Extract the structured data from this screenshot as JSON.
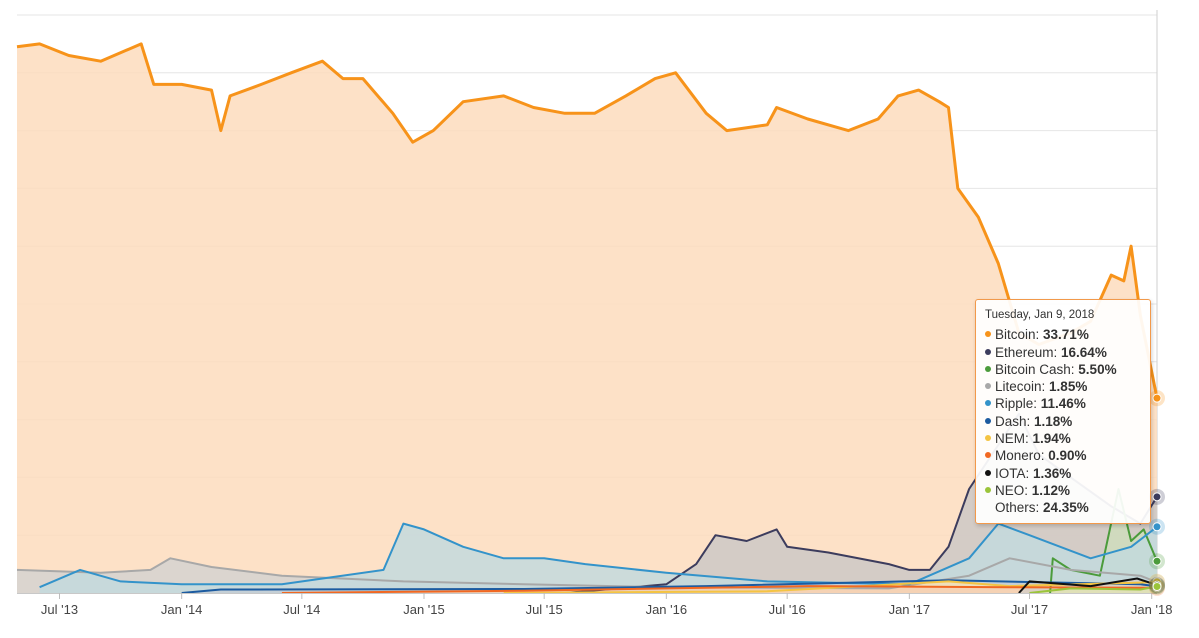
{
  "chart_data": {
    "type": "area",
    "title": "",
    "xlabel": "",
    "ylabel": "",
    "ylim": [
      0,
      100
    ],
    "x_ticks": [
      "Jul '13",
      "Jan '14",
      "Jul '14",
      "Jan '15",
      "Jul '15",
      "Jan '16",
      "Jul '16",
      "Jan '17",
      "Jul '17",
      "Jan '18"
    ],
    "grid": true,
    "series": [
      {
        "name": "Bitcoin",
        "color": "#f7931a",
        "fill": "#fddcbd",
        "points": [
          [
            "2013-04-28",
            94.5
          ],
          [
            "2013-06-01",
            95
          ],
          [
            "2013-07-15",
            93
          ],
          [
            "2013-09-01",
            92
          ],
          [
            "2013-11-01",
            95
          ],
          [
            "2013-11-20",
            88
          ],
          [
            "2014-01-01",
            88
          ],
          [
            "2014-02-15",
            87
          ],
          [
            "2014-03-01",
            80
          ],
          [
            "2014-03-15",
            86
          ],
          [
            "2014-05-01",
            88
          ],
          [
            "2014-06-15",
            90
          ],
          [
            "2014-08-01",
            92
          ],
          [
            "2014-09-01",
            89
          ],
          [
            "2014-10-01",
            89
          ],
          [
            "2014-11-15",
            83
          ],
          [
            "2014-12-15",
            78
          ],
          [
            "2015-01-15",
            80
          ],
          [
            "2015-03-01",
            85
          ],
          [
            "2015-05-01",
            86
          ],
          [
            "2015-06-15",
            84
          ],
          [
            "2015-08-01",
            83
          ],
          [
            "2015-09-15",
            83
          ],
          [
            "2015-11-01",
            86
          ],
          [
            "2015-12-15",
            89
          ],
          [
            "2016-01-15",
            90
          ],
          [
            "2016-03-01",
            83
          ],
          [
            "2016-04-01",
            80
          ],
          [
            "2016-06-01",
            81
          ],
          [
            "2016-06-15",
            84
          ],
          [
            "2016-08-01",
            82
          ],
          [
            "2016-10-01",
            80
          ],
          [
            "2016-11-15",
            82
          ],
          [
            "2016-12-15",
            86
          ],
          [
            "2017-01-15",
            87
          ],
          [
            "2017-02-15",
            85
          ],
          [
            "2017-03-01",
            84
          ],
          [
            "2017-03-15",
            70
          ],
          [
            "2017-04-15",
            65
          ],
          [
            "2017-05-15",
            57
          ],
          [
            "2017-06-15",
            45
          ],
          [
            "2017-07-15",
            43
          ],
          [
            "2017-09-01",
            45
          ],
          [
            "2017-10-01",
            47
          ],
          [
            "2017-11-01",
            55
          ],
          [
            "2017-11-20",
            54
          ],
          [
            "2017-12-01",
            60
          ],
          [
            "2017-12-15",
            48
          ],
          [
            "2018-01-09",
            33.71
          ]
        ]
      },
      {
        "name": "Ethereum",
        "color": "#3c3c5d",
        "fill": "#cdc8c6",
        "points": [
          [
            "2015-08-01",
            0
          ],
          [
            "2016-01-01",
            1.5
          ],
          [
            "2016-02-15",
            5
          ],
          [
            "2016-03-15",
            10
          ],
          [
            "2016-05-01",
            9
          ],
          [
            "2016-06-15",
            11
          ],
          [
            "2016-07-01",
            8
          ],
          [
            "2016-09-01",
            7
          ],
          [
            "2016-12-01",
            5
          ],
          [
            "2017-01-01",
            4
          ],
          [
            "2017-02-01",
            4
          ],
          [
            "2017-03-01",
            8
          ],
          [
            "2017-04-01",
            18
          ],
          [
            "2017-06-15",
            31
          ],
          [
            "2017-07-15",
            24
          ],
          [
            "2017-09-01",
            20
          ],
          [
            "2017-11-01",
            15
          ],
          [
            "2017-12-15",
            12
          ],
          [
            "2018-01-09",
            16.64
          ]
        ]
      },
      {
        "name": "Bitcoin Cash",
        "color": "#4b9b3b",
        "fill": "#cfdcbc",
        "points": [
          [
            "2017-08-01",
            0
          ],
          [
            "2017-08-05",
            6
          ],
          [
            "2017-09-01",
            4
          ],
          [
            "2017-10-15",
            3
          ],
          [
            "2017-11-12",
            18
          ],
          [
            "2017-12-01",
            9
          ],
          [
            "2017-12-20",
            11
          ],
          [
            "2018-01-09",
            5.5
          ]
        ]
      },
      {
        "name": "Litecoin",
        "color": "#a8a8a8",
        "fill": "#d5d2d0",
        "points": [
          [
            "2013-04-28",
            4
          ],
          [
            "2013-09-01",
            3.5
          ],
          [
            "2013-11-15",
            4
          ],
          [
            "2013-12-15",
            6
          ],
          [
            "2014-02-15",
            4.5
          ],
          [
            "2014-06-01",
            3
          ],
          [
            "2014-12-01",
            2
          ],
          [
            "2015-06-01",
            1.5
          ],
          [
            "2016-01-01",
            1
          ],
          [
            "2016-12-01",
            0.8
          ],
          [
            "2017-04-01",
            3
          ],
          [
            "2017-06-01",
            6
          ],
          [
            "2017-09-01",
            4
          ],
          [
            "2017-12-15",
            3
          ],
          [
            "2018-01-09",
            1.85
          ]
        ]
      },
      {
        "name": "Ripple",
        "color": "#3393ca",
        "fill": "#c3d9dd",
        "points": [
          [
            "2013-06-01",
            1
          ],
          [
            "2013-08-01",
            4
          ],
          [
            "2013-10-01",
            2
          ],
          [
            "2014-01-01",
            1.5
          ],
          [
            "2014-06-01",
            1.5
          ],
          [
            "2014-11-01",
            4
          ],
          [
            "2014-12-01",
            12
          ],
          [
            "2015-01-01",
            11
          ],
          [
            "2015-03-01",
            8
          ],
          [
            "2015-05-01",
            6
          ],
          [
            "2015-07-01",
            6
          ],
          [
            "2015-09-01",
            5
          ],
          [
            "2016-01-01",
            3.5
          ],
          [
            "2016-06-01",
            2
          ],
          [
            "2017-01-01",
            1.5
          ],
          [
            "2017-04-01",
            6
          ],
          [
            "2017-05-15",
            12
          ],
          [
            "2017-07-01",
            10
          ],
          [
            "2017-10-01",
            6
          ],
          [
            "2017-12-01",
            8
          ],
          [
            "2018-01-09",
            11.46
          ]
        ]
      },
      {
        "name": "Dash",
        "color": "#1c5ba0",
        "fill": "#c3ccd5",
        "points": [
          [
            "2014-01-01",
            0
          ],
          [
            "2014-03-01",
            0.6
          ],
          [
            "2015-06-01",
            0.7
          ],
          [
            "2016-03-01",
            1.2
          ],
          [
            "2017-03-01",
            2.2
          ],
          [
            "2017-12-15",
            1.5
          ],
          [
            "2018-01-09",
            1.18
          ]
        ]
      },
      {
        "name": "NEM",
        "color": "#f4c443",
        "fill": "#f7e2b6",
        "points": [
          [
            "2015-05-01",
            0
          ],
          [
            "2016-06-01",
            0.3
          ],
          [
            "2017-03-01",
            2
          ],
          [
            "2017-06-01",
            1.2
          ],
          [
            "2017-12-15",
            1.8
          ],
          [
            "2018-01-09",
            1.94
          ]
        ]
      },
      {
        "name": "Monero",
        "color": "#f16822",
        "fill": "#f6d0b3",
        "points": [
          [
            "2014-06-01",
            0
          ],
          [
            "2015-06-01",
            0.4
          ],
          [
            "2016-08-01",
            1.2
          ],
          [
            "2017-06-01",
            1
          ],
          [
            "2018-01-09",
            0.9
          ]
        ]
      },
      {
        "name": "IOTA",
        "color": "#111111",
        "fill": "#d6cfc6",
        "points": [
          [
            "2017-06-15",
            0
          ],
          [
            "2017-07-01",
            2
          ],
          [
            "2017-10-01",
            1.2
          ],
          [
            "2017-12-10",
            2.5
          ],
          [
            "2018-01-09",
            1.36
          ]
        ]
      },
      {
        "name": "NEO",
        "color": "#9ac43a",
        "fill": "#dfe3b5",
        "points": [
          [
            "2017-07-01",
            0
          ],
          [
            "2017-09-01",
            0.8
          ],
          [
            "2017-12-15",
            0.6
          ],
          [
            "2018-01-09",
            1.12
          ]
        ]
      }
    ],
    "tooltip": {
      "date": "Tuesday, Jan 9, 2018",
      "rows": [
        {
          "name": "Bitcoin",
          "label": "Bitcoin: ",
          "value": "33.71%",
          "color": "#f7931a"
        },
        {
          "name": "Ethereum",
          "label": "Ethereum: ",
          "value": "16.64%",
          "color": "#3c3c5d"
        },
        {
          "name": "Bitcoin Cash",
          "label": "Bitcoin Cash: ",
          "value": "5.50%",
          "color": "#4b9b3b"
        },
        {
          "name": "Litecoin",
          "label": "Litecoin: ",
          "value": "1.85%",
          "color": "#a8a8a8"
        },
        {
          "name": "Ripple",
          "label": "Ripple: ",
          "value": "11.46%",
          "color": "#3393ca"
        },
        {
          "name": "Dash",
          "label": "Dash: ",
          "value": "1.18%",
          "color": "#1c5ba0"
        },
        {
          "name": "NEM",
          "label": "NEM: ",
          "value": "1.94%",
          "color": "#f4c443"
        },
        {
          "name": "Monero",
          "label": "Monero: ",
          "value": "0.90%",
          "color": "#f16822"
        },
        {
          "name": "IOTA",
          "label": "IOTA: ",
          "value": "1.36%",
          "color": "#111111"
        },
        {
          "name": "NEO",
          "label": "NEO: ",
          "value": "1.12%",
          "color": "#9ac43a"
        },
        {
          "name": "Others",
          "label": "Others: ",
          "value": "24.35%",
          "color": null
        }
      ]
    }
  }
}
